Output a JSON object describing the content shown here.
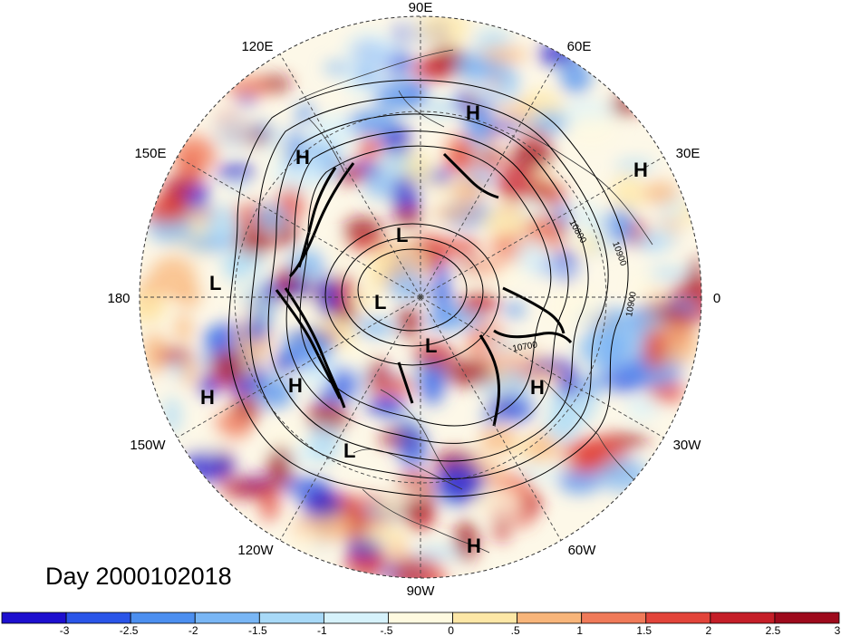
{
  "title": "Day 2000102018",
  "longitude_labels": [
    {
      "lon": 90,
      "text": "90E"
    },
    {
      "lon": 60,
      "text": "60E"
    },
    {
      "lon": 120,
      "text": "120E"
    },
    {
      "lon": 30,
      "text": "30E"
    },
    {
      "lon": 150,
      "text": "150E"
    },
    {
      "lon": 180,
      "text": "180"
    },
    {
      "lon": 0,
      "text": "0"
    },
    {
      "lon": -150,
      "text": "150W"
    },
    {
      "lon": -30,
      "text": "30W"
    },
    {
      "lon": -120,
      "text": "120W"
    },
    {
      "lon": -60,
      "text": "60W"
    },
    {
      "lon": -90,
      "text": "90W"
    }
  ],
  "pressure_centers": [
    {
      "type": "H",
      "text": "H"
    },
    {
      "type": "H",
      "text": "H"
    },
    {
      "type": "H",
      "text": "H"
    },
    {
      "type": "L",
      "text": "L"
    },
    {
      "type": "L",
      "text": "L"
    },
    {
      "type": "L",
      "text": "L"
    },
    {
      "type": "L",
      "text": "L"
    },
    {
      "type": "H",
      "text": "H"
    },
    {
      "type": "H",
      "text": "H"
    },
    {
      "type": "H",
      "text": "H"
    },
    {
      "type": "L",
      "text": "L"
    },
    {
      "type": "H",
      "text": "H"
    }
  ],
  "contour_labels": [
    "10800",
    "10900",
    "10900",
    "10700"
  ],
  "colorbar": {
    "colors": [
      "#1d0fcf",
      "#2a55e8",
      "#4c8ff0",
      "#79b6f5",
      "#a8d9f7",
      "#d6f2fb",
      "#fffae0",
      "#fde7a6",
      "#f8b57a",
      "#f07a59",
      "#e2443a",
      "#c51e28",
      "#9e0a1c"
    ],
    "labels": [
      "-3",
      "-2.5",
      "-2",
      "-1.5",
      "-1",
      "-.5",
      "0",
      ".5",
      "1",
      "1.5",
      "2",
      "2.5",
      "3"
    ]
  }
}
